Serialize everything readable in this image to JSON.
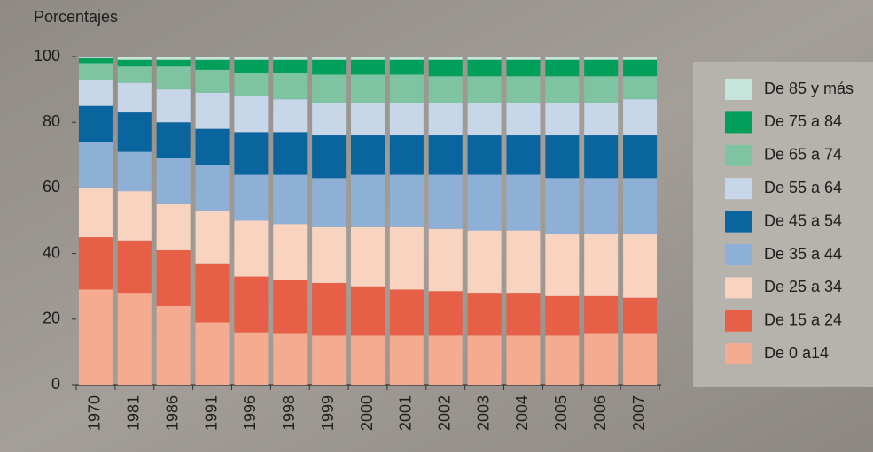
{
  "chart_data": {
    "type": "stacked_bar",
    "ylabel": "Porcentajes",
    "categories": [
      "1970",
      "1981",
      "1986",
      "1991",
      "1996",
      "1998",
      "1999",
      "2000",
      "2001",
      "2002",
      "2003",
      "2004",
      "2005",
      "2006",
      "2007"
    ],
    "series": [
      {
        "name": "De 0 a14",
        "color": "#f4ab90",
        "values": [
          29,
          28,
          24,
          19,
          16,
          15.5,
          15,
          15,
          15,
          15,
          15,
          15,
          15,
          15.5,
          15.5
        ]
      },
      {
        "name": "De 15 a 24",
        "color": "#e85f47",
        "values": [
          16,
          16,
          17,
          18,
          17,
          16.5,
          16,
          15,
          14,
          13.5,
          13,
          13,
          12,
          11.5,
          11
        ]
      },
      {
        "name": "De 25 a 34",
        "color": "#f8d4c0",
        "values": [
          15,
          15,
          14,
          16,
          17,
          17,
          17,
          18,
          19,
          19,
          19,
          19,
          19,
          19,
          19.5
        ]
      },
      {
        "name": "De 35 a 44",
        "color": "#8fb0d6",
        "values": [
          14,
          12,
          14,
          14,
          14,
          15,
          15,
          16,
          16,
          16.5,
          17,
          17,
          17,
          17,
          17
        ]
      },
      {
        "name": "De 45 a 54",
        "color": "#0a649e",
        "values": [
          11,
          12,
          11,
          11,
          13,
          13,
          13,
          12,
          12,
          12,
          12,
          12,
          13,
          13,
          13
        ]
      },
      {
        "name": "De 55 a 64",
        "color": "#c8d6ea",
        "values": [
          8,
          9,
          10,
          11,
          11,
          10,
          10,
          10,
          10,
          10,
          10,
          10,
          10,
          10,
          11
        ]
      },
      {
        "name": "De 65 a 74",
        "color": "#7ec4a2",
        "values": [
          5,
          5,
          7,
          7,
          7,
          8,
          8.5,
          8.5,
          8.5,
          8,
          8,
          8,
          8,
          8,
          7
        ]
      },
      {
        "name": "De 75 a 84",
        "color": "#00a05a",
        "values": [
          1.5,
          2,
          2,
          3,
          4,
          4,
          4.5,
          4.5,
          4.5,
          5,
          5,
          5,
          5,
          5,
          5
        ]
      },
      {
        "name": "De 85 y más",
        "color": "#c6e5da",
        "values": [
          0.5,
          1,
          1,
          1,
          1,
          1,
          1,
          1,
          1,
          1,
          1,
          1,
          1,
          1,
          1
        ]
      }
    ],
    "ylim": [
      0,
      100
    ],
    "yticks": [
      0,
      20,
      40,
      60,
      80,
      100
    ],
    "legend": "right"
  }
}
